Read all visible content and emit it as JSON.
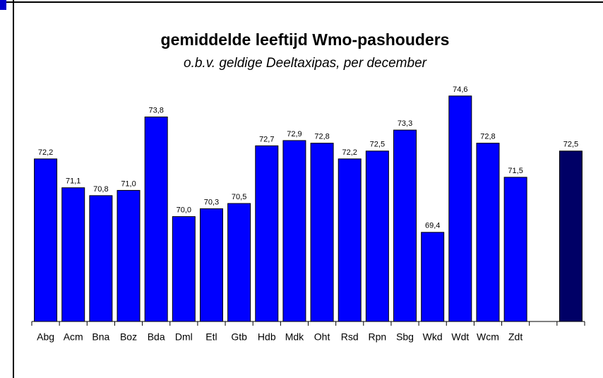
{
  "chart_data": {
    "type": "bar",
    "title": "gemiddelde leeftijd Wmo-pashouders",
    "subtitle": "o.b.v. geldige Deeltaxipas, per december",
    "categories": [
      "Abg",
      "Acm",
      "Bna",
      "Boz",
      "Bda",
      "Dml",
      "Etl",
      "Gtb",
      "Hdb",
      "Mdk",
      "Oht",
      "Rsd",
      "Rpn",
      "Sbg",
      "Wkd",
      "Wdt",
      "Wcm",
      "Zdt",
      null,
      null
    ],
    "values": [
      72.2,
      71.1,
      70.8,
      71.0,
      73.8,
      70.0,
      70.3,
      70.5,
      72.7,
      72.9,
      72.8,
      72.2,
      72.5,
      73.3,
      69.4,
      74.6,
      72.8,
      71.5,
      null,
      72.5
    ],
    "value_labels": [
      "72,2",
      "71,1",
      "70,8",
      "71,0",
      "73,8",
      "70,0",
      "70,3",
      "70,5",
      "72,7",
      "72,9",
      "72,8",
      "72,2",
      "72,5",
      "73,3",
      "69,4",
      "74,6",
      "72,8",
      "71,5",
      null,
      "72,5"
    ],
    "colors": [
      "#0000ff",
      "#0000ff",
      "#0000ff",
      "#0000ff",
      "#0000ff",
      "#0000ff",
      "#0000ff",
      "#0000ff",
      "#0000ff",
      "#0000ff",
      "#0000ff",
      "#0000ff",
      "#0000ff",
      "#0000ff",
      "#0000ff",
      "#0000ff",
      "#0000ff",
      "#0000ff",
      null,
      "#000066"
    ],
    "ylim": [
      66,
      75
    ]
  }
}
